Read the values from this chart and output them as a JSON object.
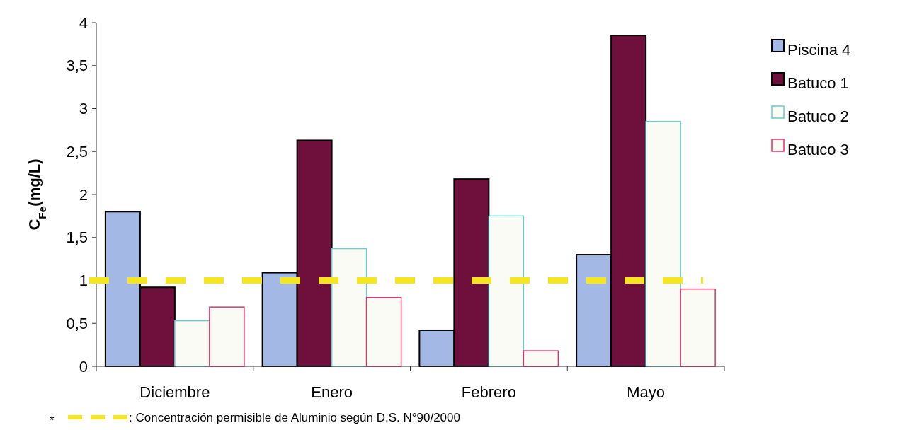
{
  "chart_data": {
    "type": "bar",
    "ylabel": "C$_{Fe}$(mg/L)",
    "categories": [
      "Diciembre",
      "Enero",
      "Febrero",
      "Mayo"
    ],
    "series": [
      {
        "name": "Piscina 4",
        "color": "#a4b8e6",
        "values": [
          1.8,
          1.09,
          0.42,
          1.3
        ]
      },
      {
        "name": "Batuco 1",
        "color": "#6e0f3c",
        "values": [
          0.92,
          2.63,
          2.18,
          3.85
        ]
      },
      {
        "name": "Batuco 2",
        "color": "#66cccc",
        "values": [
          0.53,
          1.37,
          1.75,
          2.85
        ]
      },
      {
        "name": "Batuco 3",
        "color": "#e0306a",
        "values": [
          0.69,
          0.8,
          0.18,
          0.9
        ]
      }
    ],
    "ylim": [
      0,
      4
    ],
    "yticks": [
      {
        "value": 0,
        "label": "0"
      },
      {
        "value": 0.5,
        "label": "0,5"
      },
      {
        "value": 1,
        "label": "1"
      },
      {
        "value": 1.5,
        "label": "1,5"
      },
      {
        "value": 2,
        "label": "2"
      },
      {
        "value": 2.5,
        "label": "2,5"
      },
      {
        "value": 3,
        "label": "3"
      },
      {
        "value": 3.5,
        "label": "3,5"
      },
      {
        "value": 4,
        "label": "4"
      }
    ],
    "legend": "right",
    "ref_lines": [
      {
        "axis": "y",
        "value": 1,
        "label": ": Concentración permisible de Aluminio según D.S. N°90/2000",
        "color": "#f5e61e",
        "line_style": "dashed"
      }
    ],
    "annotations": [
      "*"
    ]
  }
}
